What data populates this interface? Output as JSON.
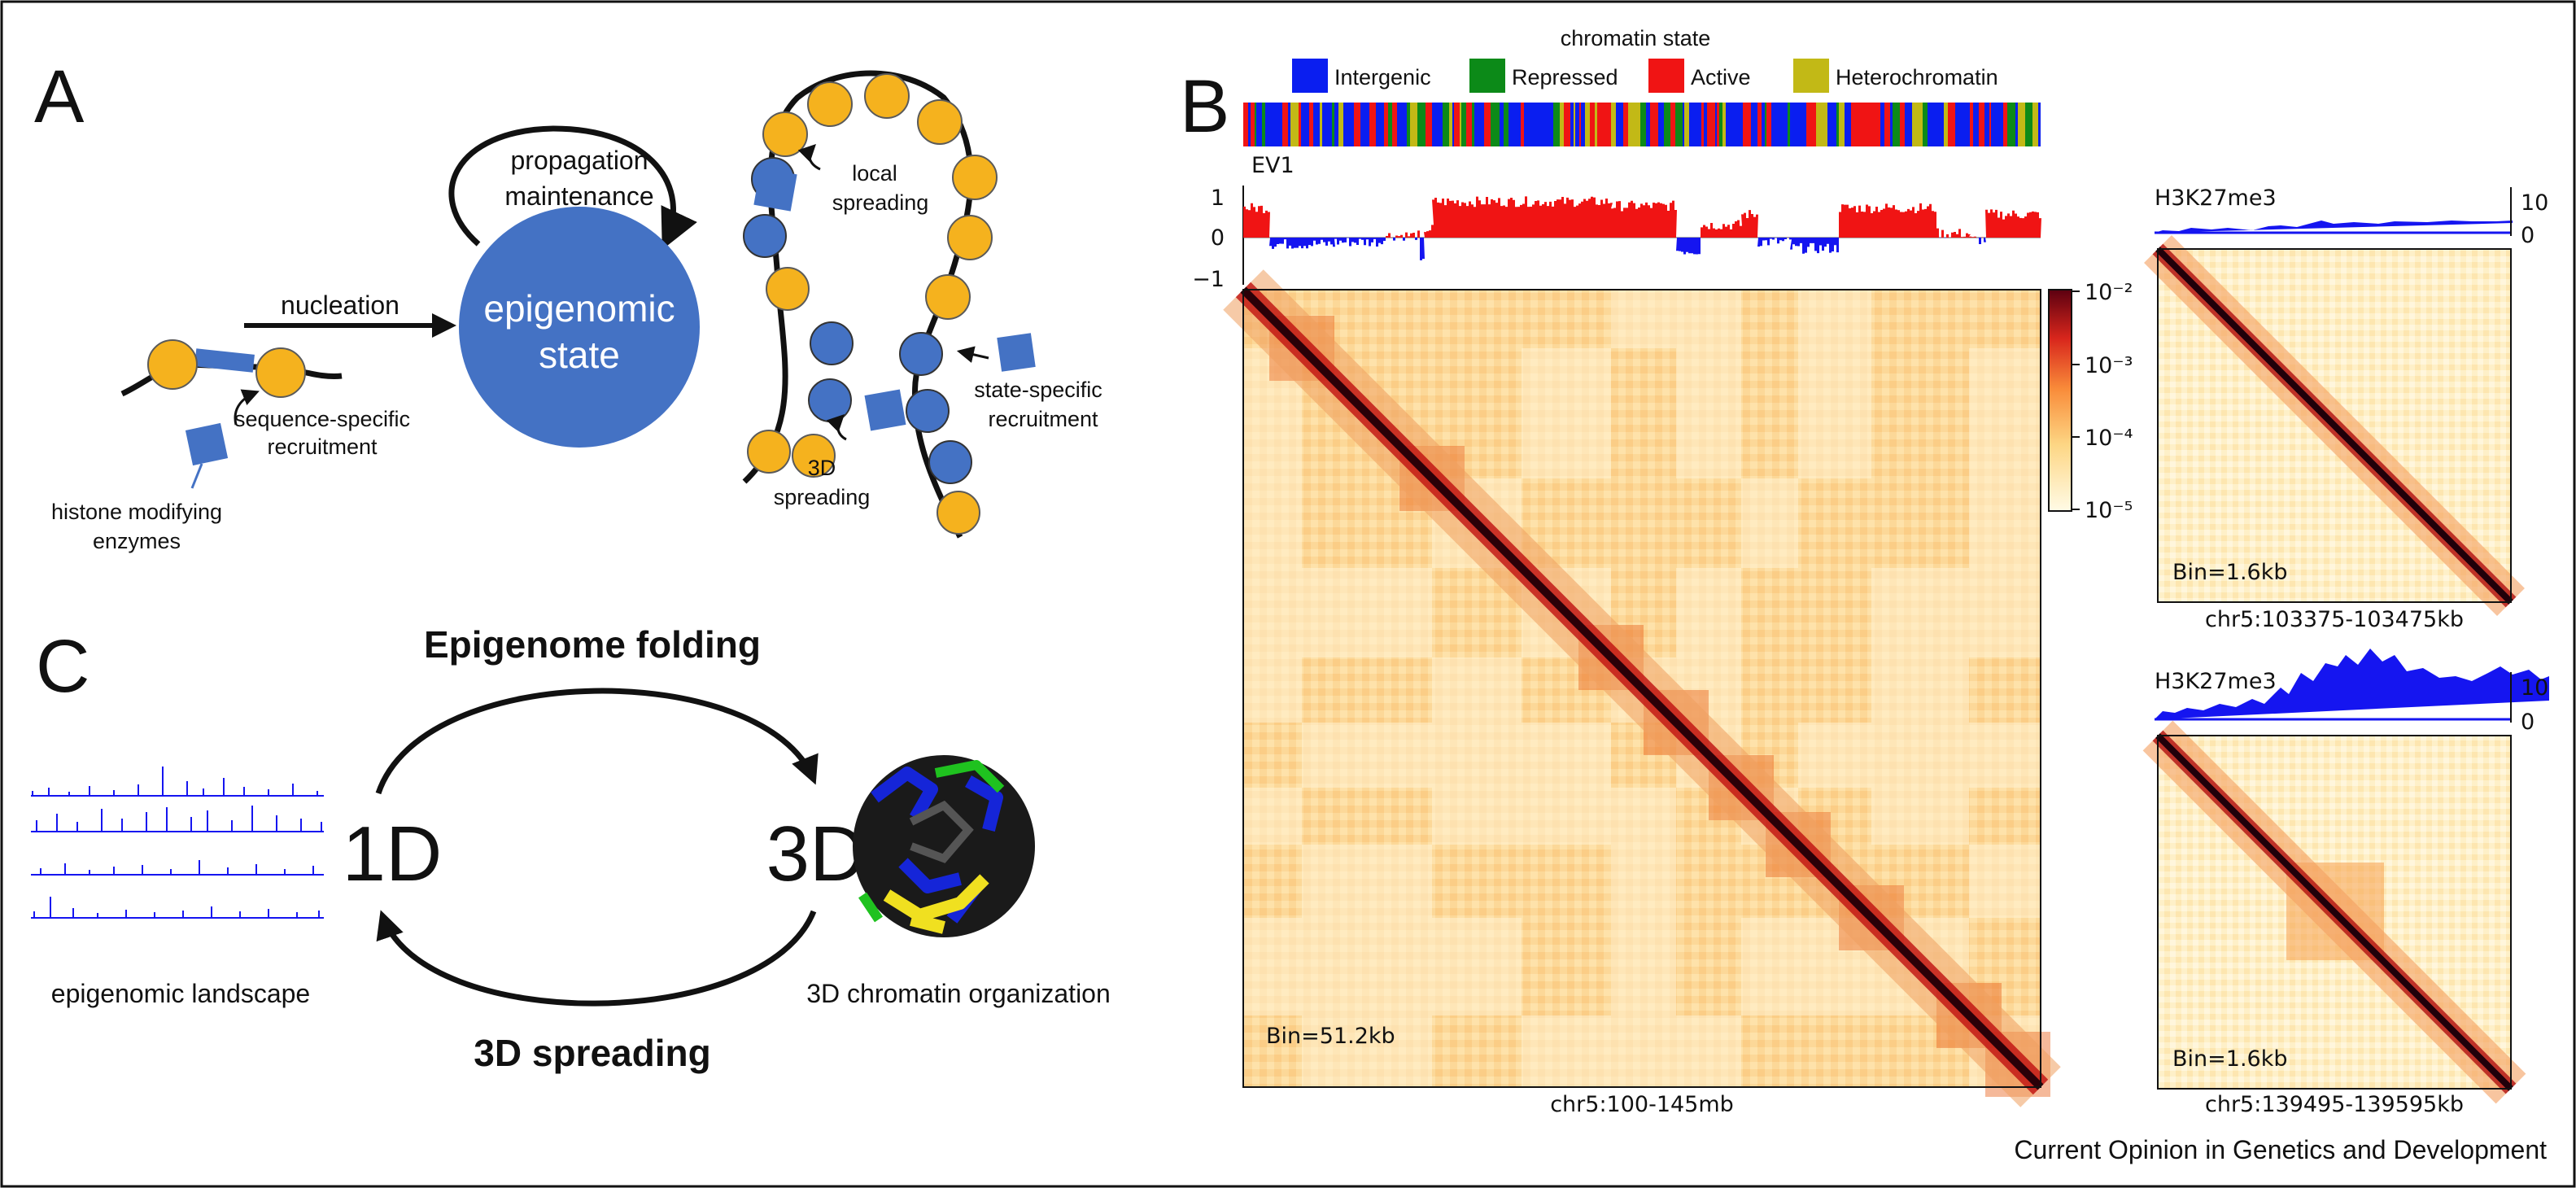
{
  "figure": {
    "credit": "Current Opinion in Genetics and Development"
  },
  "panelA": {
    "letter": "A",
    "center_label_line1": "epigenomic",
    "center_label_line2": "state",
    "loop_label_line1": "propagation",
    "loop_label_line2": "maintenance",
    "arrow_label": "nucleation",
    "seq_label_line1": "sequence-specific",
    "seq_label_line2": "recruitment",
    "enzyme_label_line1": "histone modifying",
    "enzyme_label_line2": "enzymes",
    "local_label_line1": "local",
    "local_label_line2": "spreading",
    "state_label_line1": "state-specific",
    "state_label_line2": "recruitment",
    "spread3d_label_line1": "3D",
    "spread3d_label_line2": "spreading",
    "colors": {
      "nucleosome_yellow": "#F5B21E",
      "nucleosome_blue": "#4472C4",
      "enzyme": "#4472C4"
    }
  },
  "panelB": {
    "letter": "B",
    "legend_title": "chromatin state",
    "legend": [
      {
        "label": "Intergenic",
        "color": "#0A1EF0"
      },
      {
        "label": "Repressed",
        "color": "#0C8A18"
      },
      {
        "label": "Active",
        "color": "#F01414"
      },
      {
        "label": "Heterochromatin",
        "color": "#C2B916"
      }
    ],
    "ev1_label": "EV1",
    "ev1_ticks": [
      "1",
      "0",
      "−1"
    ],
    "colorbar_ticks": [
      "10⁻²",
      "10⁻³",
      "10⁻⁴",
      "10⁻⁵"
    ],
    "main_bin": "Bin=51.2kb",
    "main_region": "chr5:100-145mb",
    "track_label": "H3K27me3",
    "track_ticks": [
      "10",
      "0"
    ],
    "zoom1_bin": "Bin=1.6kb",
    "zoom1_region": "chr5:103375-103475kb",
    "zoom2_bin": "Bin=1.6kb",
    "zoom2_region": "chr5:139495-139595kb"
  },
  "panelC": {
    "letter": "C",
    "top_label": "Epigenome folding",
    "bottom_label": "3D spreading",
    "left_big": "1D",
    "right_big": "3D",
    "left_caption": "epigenomic landscape",
    "right_caption": "3D chromatin organization"
  }
}
